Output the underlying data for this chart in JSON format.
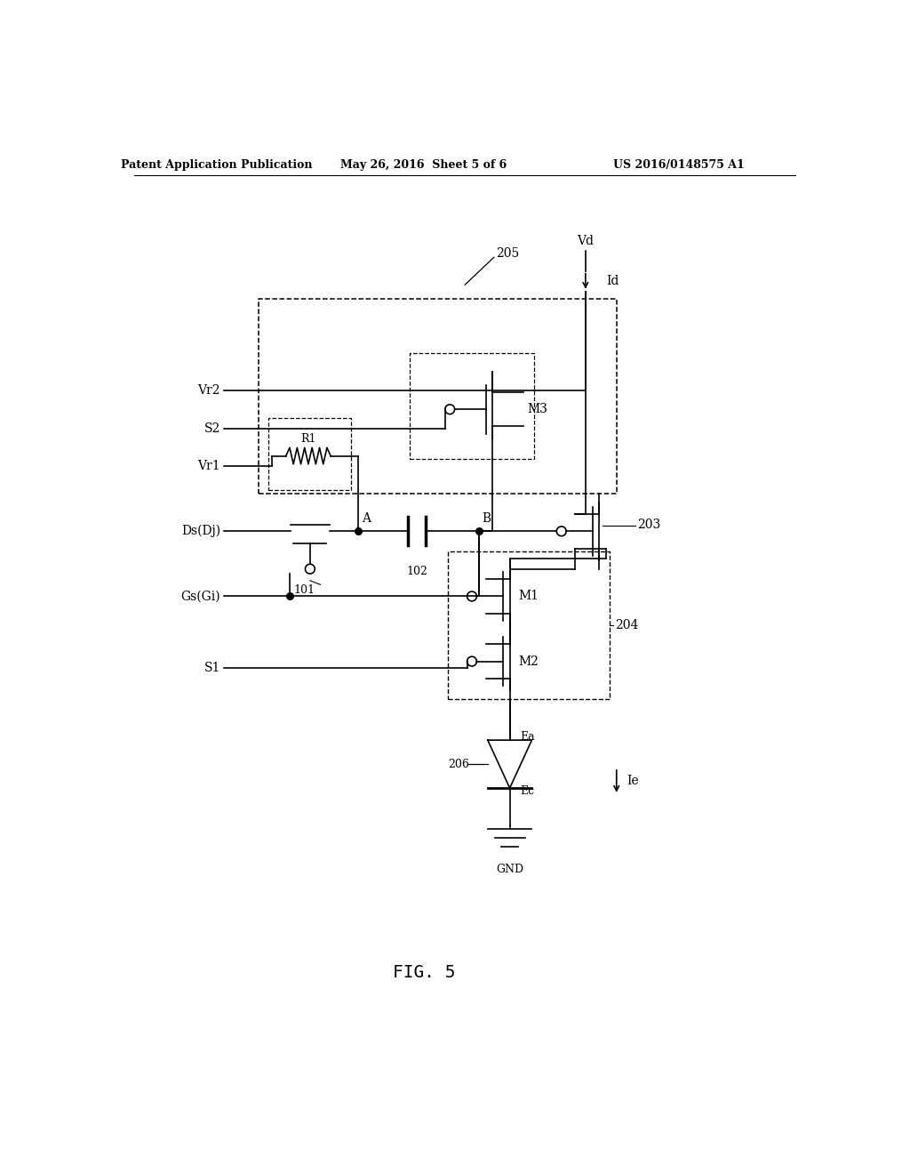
{
  "title": "FIG. 5",
  "header_left": "Patent Application Publication",
  "header_mid": "May 26, 2016  Sheet 5 of 6",
  "header_right": "US 2016/0148575 A1",
  "bg_color": "#ffffff",
  "line_color": "#000000",
  "fig_width": 10.24,
  "fig_height": 13.2
}
